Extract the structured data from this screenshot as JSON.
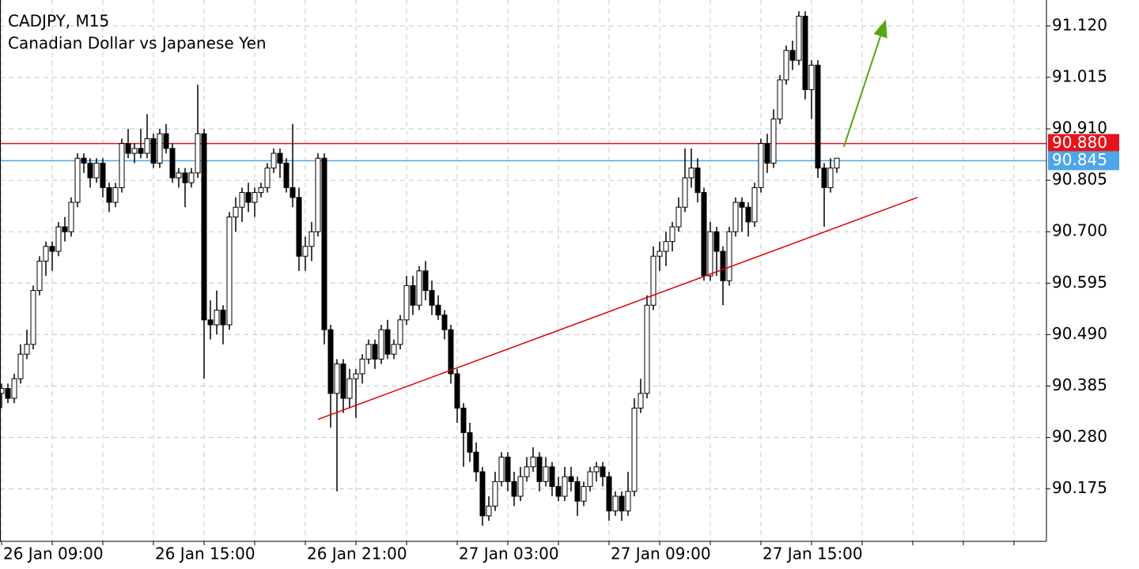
{
  "chart_data": {
    "type": "candlestick",
    "title": "CADJPY, M15",
    "subtitle": "Canadian Dollar vs Japanese Yen",
    "up_color": "#ffffff",
    "down_color": "#000000",
    "wick_color": "#000000",
    "grid": true,
    "xlim": [
      -0.25,
      165.125
    ],
    "ylim": [
      90.068,
      91.173
    ],
    "xticks": [
      {
        "value": 0,
        "label": "26 Jan 09:00"
      },
      {
        "value": 8,
        "label": null
      },
      {
        "value": 16,
        "label": null
      },
      {
        "value": 24,
        "label": "26 Jan 15:00"
      },
      {
        "value": 32,
        "label": null
      },
      {
        "value": 40,
        "label": null
      },
      {
        "value": 48,
        "label": "26 Jan 21:00"
      },
      {
        "value": 56,
        "label": null
      },
      {
        "value": 64,
        "label": null
      },
      {
        "value": 72,
        "label": "27 Jan 03:00"
      },
      {
        "value": 80,
        "label": null
      },
      {
        "value": 88,
        "label": null
      },
      {
        "value": 96,
        "label": "27 Jan 09:00"
      },
      {
        "value": 104,
        "label": null
      },
      {
        "value": 112,
        "label": null
      },
      {
        "value": 120,
        "label": "27 Jan 15:00"
      },
      {
        "value": 128,
        "label": null
      },
      {
        "value": 136,
        "label": null
      },
      {
        "value": 144,
        "label": null
      },
      {
        "value": 152,
        "label": null
      },
      {
        "value": 160,
        "label": null
      }
    ],
    "yticks": [
      {
        "value": 91.12,
        "label": "91.120"
      },
      91.015,
      {
        "value": 90.91,
        "label": "90.910"
      },
      90.805,
      {
        "value": 90.7,
        "label": "90.700"
      },
      90.595,
      {
        "value": 90.49,
        "label": "90.490"
      },
      90.385,
      {
        "value": 90.28,
        "label": "90.280"
      },
      90.175
    ],
    "hlines": [
      {
        "value": 90.88,
        "label": "90.880",
        "color": "#e5131b"
      },
      {
        "value": 90.845,
        "label": "90.845",
        "color": "#4da6e8"
      }
    ],
    "trendline": {
      "color": "#e00000",
      "x": [
        50,
        144.75
      ],
      "y": [
        90.317,
        90.77
      ]
    },
    "arrow": {
      "color": "#5aa514",
      "x": [
        133.1,
        139.75
      ],
      "y": [
        90.873,
        91.133
      ]
    },
    "ohlc": [
      [
        90.37,
        90.39,
        90.34,
        90.38
      ],
      [
        90.38,
        90.39,
        90.35,
        90.36
      ],
      [
        90.36,
        90.41,
        90.35,
        90.4
      ],
      [
        90.4,
        90.47,
        90.39,
        90.45
      ],
      [
        90.45,
        90.5,
        90.44,
        90.47
      ],
      [
        90.47,
        90.59,
        90.46,
        90.58
      ],
      [
        90.58,
        90.65,
        90.57,
        90.64
      ],
      [
        90.64,
        90.68,
        90.61,
        90.67
      ],
      [
        90.67,
        90.68,
        90.62,
        90.66
      ],
      [
        90.66,
        90.72,
        90.65,
        90.71
      ],
      [
        90.71,
        90.73,
        90.68,
        90.7
      ],
      [
        90.7,
        90.77,
        90.69,
        90.76
      ],
      [
        90.76,
        90.86,
        90.75,
        90.85
      ],
      [
        90.85,
        90.86,
        90.82,
        90.84
      ],
      [
        90.84,
        90.85,
        90.79,
        90.81
      ],
      [
        90.81,
        90.85,
        90.8,
        90.84
      ],
      [
        90.84,
        90.85,
        90.77,
        90.79
      ],
      [
        90.79,
        90.8,
        90.74,
        90.76
      ],
      [
        90.76,
        90.8,
        90.75,
        90.79
      ],
      [
        90.79,
        90.89,
        90.78,
        90.88
      ],
      [
        90.88,
        90.91,
        90.85,
        90.86
      ],
      [
        90.86,
        90.88,
        90.84,
        90.87
      ],
      [
        90.87,
        90.91,
        90.85,
        90.86
      ],
      [
        90.86,
        90.94,
        90.85,
        90.89
      ],
      [
        90.89,
        90.9,
        90.83,
        90.84
      ],
      [
        90.84,
        90.91,
        90.83,
        90.9
      ],
      [
        90.9,
        90.92,
        90.86,
        90.87
      ],
      [
        90.87,
        90.88,
        90.8,
        90.81
      ],
      [
        90.81,
        90.83,
        90.79,
        90.82
      ],
      [
        90.82,
        90.83,
        90.75,
        90.8
      ],
      [
        90.8,
        90.83,
        90.79,
        90.82
      ],
      [
        90.82,
        91.0,
        90.81,
        90.9
      ],
      [
        90.9,
        90.91,
        90.4,
        90.52
      ],
      [
        90.52,
        90.56,
        90.48,
        90.51
      ],
      [
        90.51,
        90.58,
        90.49,
        90.54
      ],
      [
        90.54,
        90.55,
        90.47,
        90.51
      ],
      [
        90.51,
        90.74,
        90.5,
        90.73
      ],
      [
        90.73,
        90.77,
        90.7,
        90.75
      ],
      [
        90.75,
        90.79,
        90.72,
        90.78
      ],
      [
        90.78,
        90.8,
        90.74,
        90.76
      ],
      [
        90.76,
        90.79,
        90.73,
        90.78
      ],
      [
        90.78,
        90.8,
        90.77,
        90.79
      ],
      [
        90.79,
        90.84,
        90.78,
        90.83
      ],
      [
        90.83,
        90.87,
        90.82,
        90.86
      ],
      [
        90.86,
        90.87,
        90.81,
        90.84
      ],
      [
        90.84,
        90.85,
        90.78,
        90.79
      ],
      [
        90.79,
        90.92,
        90.75,
        90.77
      ],
      [
        90.77,
        90.79,
        90.62,
        90.65
      ],
      [
        90.65,
        90.69,
        90.62,
        90.67
      ],
      [
        90.67,
        90.72,
        90.64,
        90.7
      ],
      [
        90.7,
        90.86,
        90.69,
        90.85
      ],
      [
        90.85,
        90.86,
        90.47,
        90.5
      ],
      [
        90.5,
        90.51,
        90.3,
        90.37
      ],
      [
        90.37,
        90.44,
        90.17,
        90.43
      ],
      [
        90.43,
        90.44,
        90.33,
        90.36
      ],
      [
        90.36,
        90.42,
        90.34,
        90.4
      ],
      [
        90.4,
        90.42,
        90.32,
        90.41
      ],
      [
        90.41,
        90.45,
        90.39,
        90.44
      ],
      [
        90.44,
        90.48,
        90.43,
        90.47
      ],
      [
        90.47,
        90.48,
        90.42,
        90.44
      ],
      [
        90.44,
        90.51,
        90.43,
        90.5
      ],
      [
        90.5,
        90.52,
        90.44,
        90.45
      ],
      [
        90.45,
        90.48,
        90.44,
        90.47
      ],
      [
        90.47,
        90.53,
        90.46,
        90.52
      ],
      [
        90.52,
        90.61,
        90.51,
        90.59
      ],
      [
        90.59,
        90.61,
        90.53,
        90.55
      ],
      [
        90.55,
        90.63,
        90.54,
        90.62
      ],
      [
        90.62,
        90.64,
        90.56,
        90.58
      ],
      [
        90.58,
        90.6,
        90.53,
        90.55
      ],
      [
        90.55,
        90.57,
        90.52,
        90.53
      ],
      [
        90.53,
        90.54,
        90.48,
        90.5
      ],
      [
        90.5,
        90.51,
        90.39,
        90.41
      ],
      [
        90.41,
        90.42,
        90.31,
        90.34
      ],
      [
        90.34,
        90.35,
        90.22,
        90.29
      ],
      [
        90.29,
        90.31,
        90.23,
        90.25
      ],
      [
        90.25,
        90.27,
        90.19,
        90.21
      ],
      [
        90.21,
        90.22,
        90.1,
        90.12
      ],
      [
        90.12,
        90.16,
        90.11,
        90.14
      ],
      [
        90.14,
        90.21,
        90.13,
        90.19
      ],
      [
        90.19,
        90.25,
        90.18,
        90.24
      ],
      [
        90.24,
        90.25,
        90.17,
        90.19
      ],
      [
        90.19,
        90.21,
        90.14,
        90.16
      ],
      [
        90.16,
        90.22,
        90.15,
        90.2
      ],
      [
        90.2,
        90.24,
        90.19,
        90.22
      ],
      [
        90.22,
        90.26,
        90.21,
        90.24
      ],
      [
        90.24,
        90.25,
        90.17,
        90.19
      ],
      [
        90.19,
        90.24,
        90.18,
        90.22
      ],
      [
        90.22,
        90.23,
        90.16,
        90.18
      ],
      [
        90.18,
        90.2,
        90.15,
        90.16
      ],
      [
        90.16,
        90.22,
        90.15,
        90.2
      ],
      [
        90.2,
        90.22,
        90.17,
        90.19
      ],
      [
        90.19,
        90.2,
        90.12,
        90.15
      ],
      [
        90.15,
        90.19,
        90.14,
        90.18
      ],
      [
        90.18,
        90.22,
        90.17,
        90.21
      ],
      [
        90.21,
        90.23,
        90.19,
        90.22
      ],
      [
        90.22,
        90.23,
        90.18,
        90.2
      ],
      [
        90.2,
        90.21,
        90.11,
        90.13
      ],
      [
        90.13,
        90.17,
        90.12,
        90.16
      ],
      [
        90.16,
        90.17,
        90.11,
        90.13
      ],
      [
        90.13,
        90.21,
        90.12,
        90.17
      ],
      [
        90.17,
        90.36,
        90.16,
        90.34
      ],
      [
        90.34,
        90.4,
        90.33,
        90.37
      ],
      [
        90.37,
        90.57,
        90.36,
        90.55
      ],
      [
        90.55,
        90.67,
        90.54,
        90.65
      ],
      [
        90.65,
        90.68,
        90.62,
        90.66
      ],
      [
        90.66,
        90.7,
        90.63,
        90.68
      ],
      [
        90.68,
        90.72,
        90.66,
        90.71
      ],
      [
        90.71,
        90.77,
        90.7,
        90.75
      ],
      [
        90.75,
        90.87,
        90.74,
        90.81
      ],
      [
        90.81,
        90.87,
        90.79,
        90.83
      ],
      [
        90.83,
        90.85,
        90.76,
        90.78
      ],
      [
        90.78,
        90.79,
        90.6,
        90.61
      ],
      [
        90.61,
        90.72,
        90.6,
        90.7
      ],
      [
        90.7,
        90.71,
        90.61,
        90.66
      ],
      [
        90.66,
        90.67,
        90.55,
        90.6
      ],
      [
        90.6,
        90.71,
        90.59,
        90.7
      ],
      [
        90.7,
        90.77,
        90.69,
        90.76
      ],
      [
        90.76,
        90.77,
        90.7,
        90.75
      ],
      [
        90.75,
        90.76,
        90.69,
        90.72
      ],
      [
        90.72,
        90.8,
        90.71,
        90.79
      ],
      [
        90.79,
        90.89,
        90.78,
        90.88
      ],
      [
        90.88,
        90.9,
        90.82,
        90.84
      ],
      [
        90.84,
        90.95,
        90.83,
        90.93
      ],
      [
        90.93,
        91.02,
        90.92,
        91.01
      ],
      [
        91.01,
        91.08,
        91.0,
        91.07
      ],
      [
        91.07,
        91.09,
        91.03,
        91.05
      ],
      [
        91.05,
        91.15,
        91.04,
        91.14
      ],
      [
        91.14,
        91.15,
        90.97,
        90.99
      ],
      [
        90.99,
        91.05,
        90.93,
        91.04
      ],
      [
        91.04,
        91.05,
        90.81,
        90.83
      ],
      [
        90.83,
        90.84,
        90.71,
        90.79
      ],
      [
        90.79,
        90.85,
        90.78,
        90.83
      ],
      [
        90.83,
        90.85,
        90.82,
        90.85
      ]
    ]
  }
}
